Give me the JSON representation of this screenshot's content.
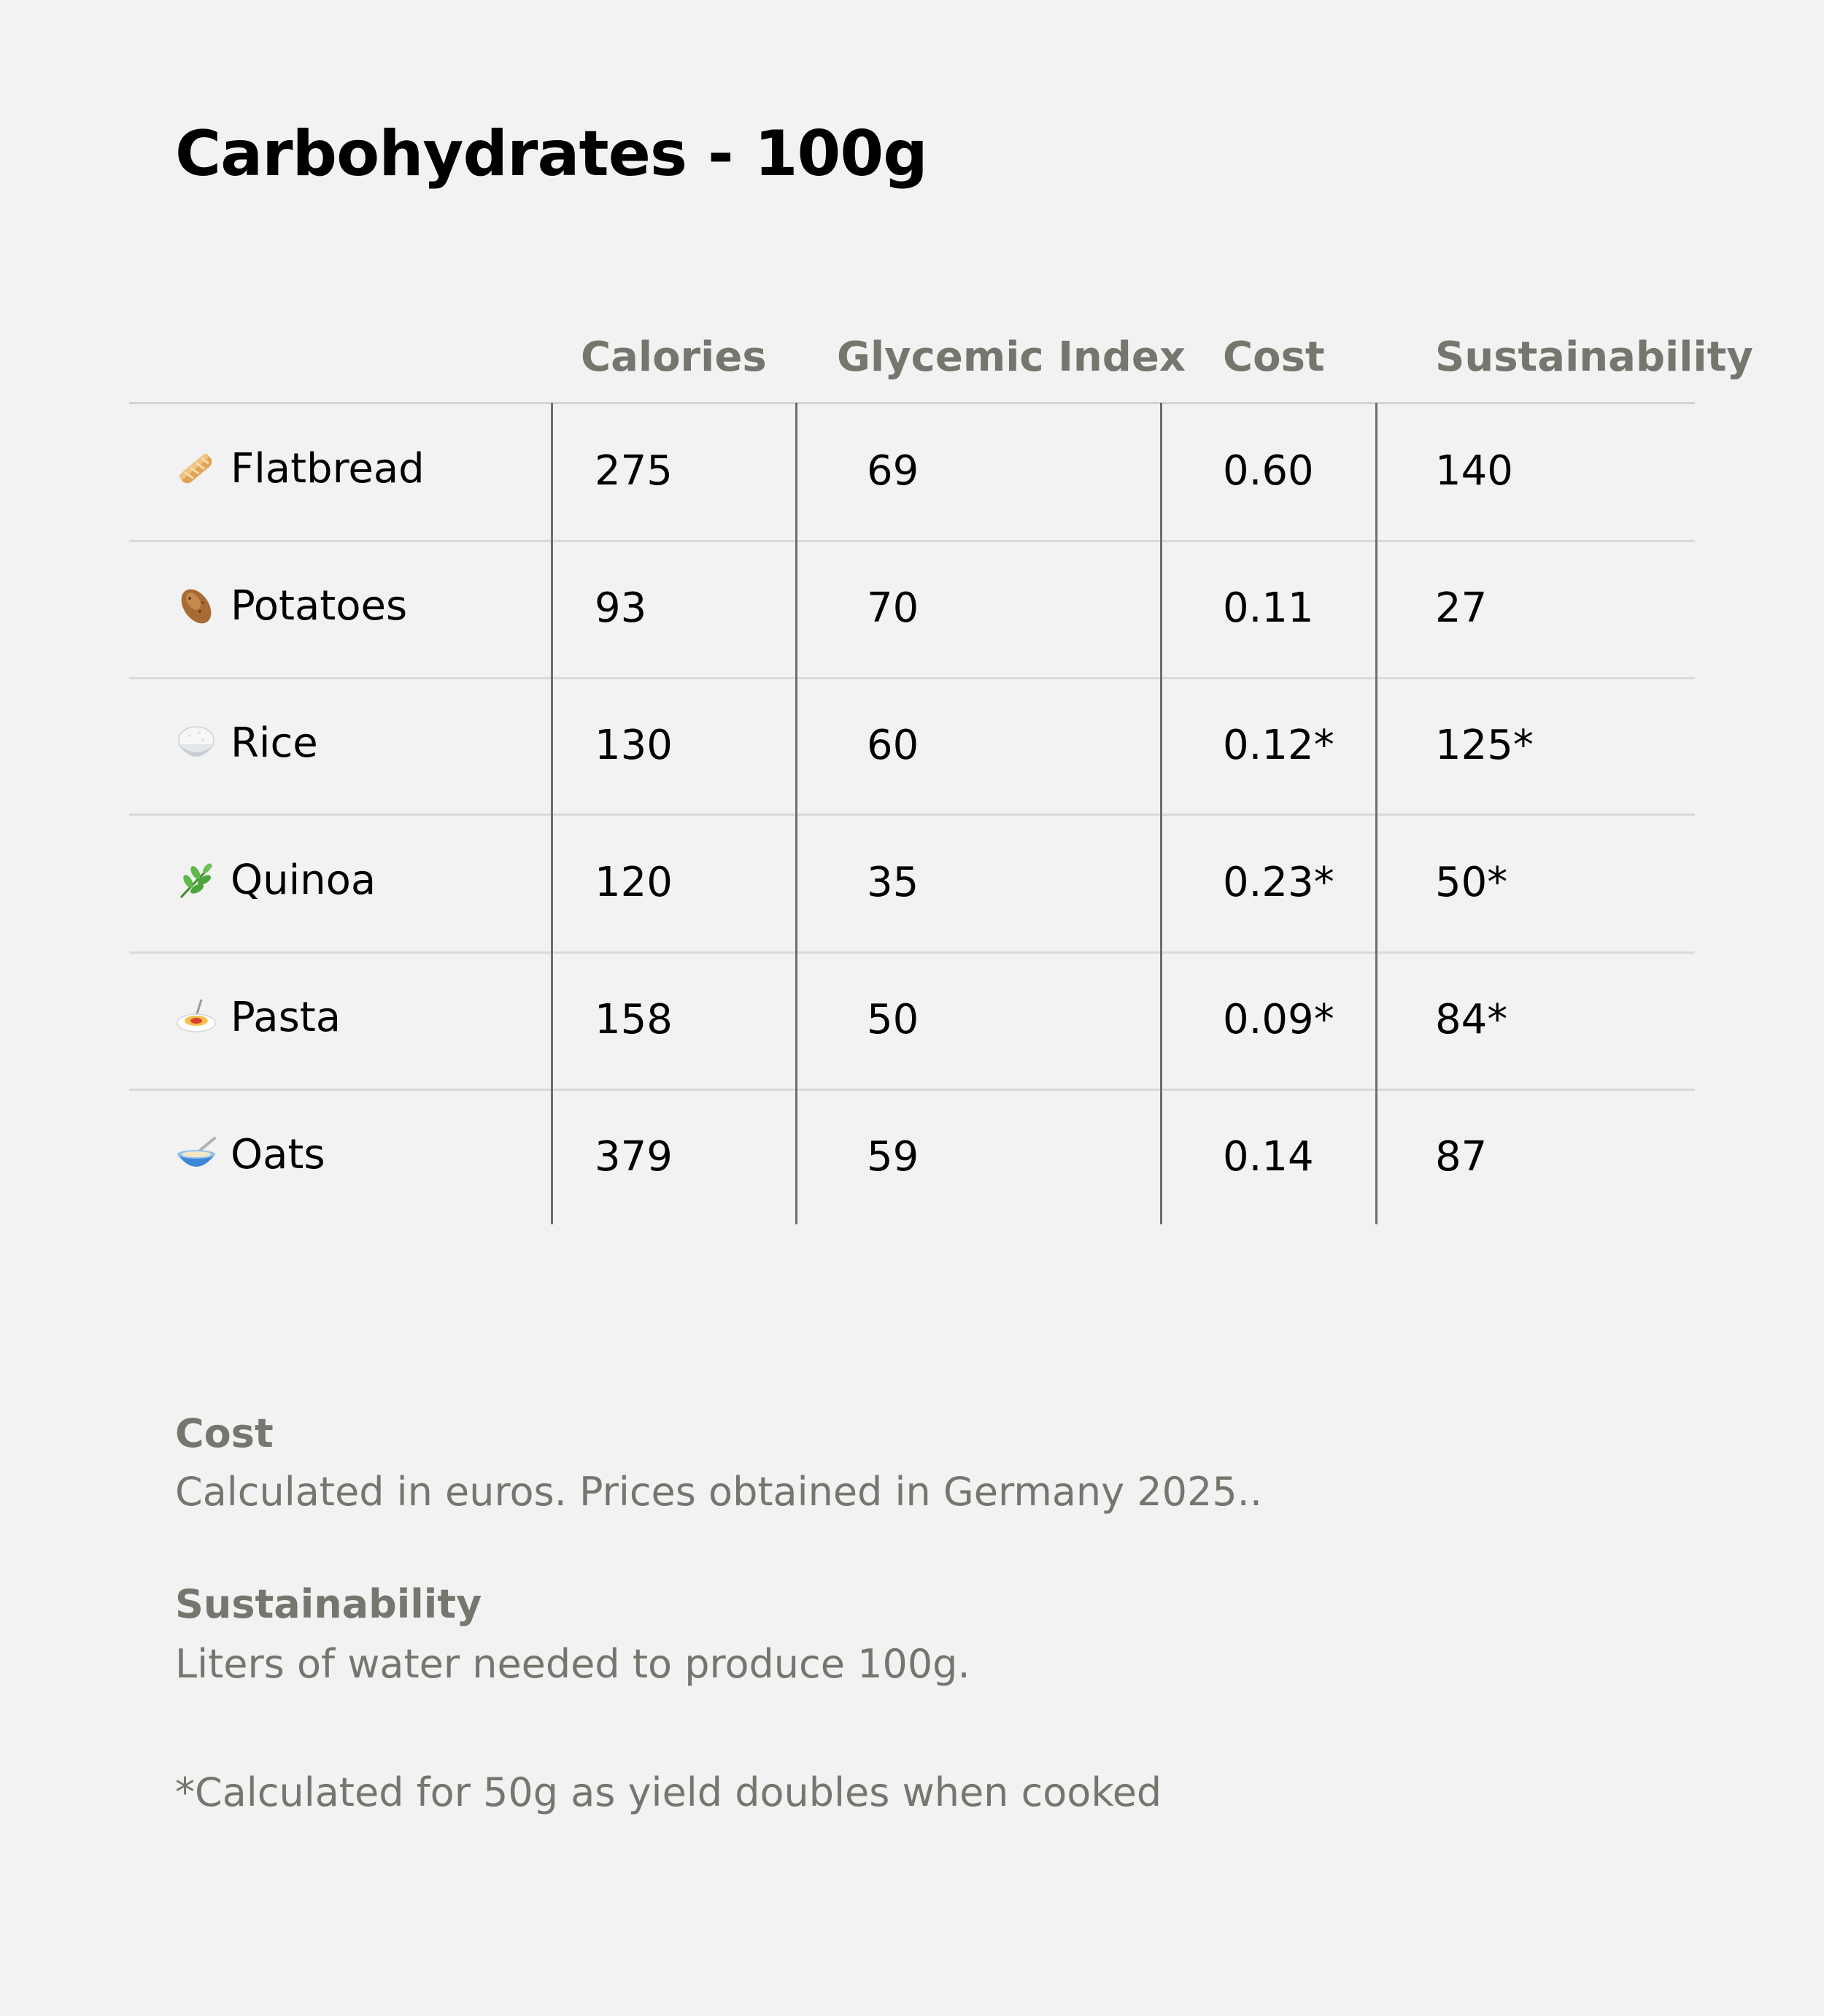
{
  "title": "Carbohydrates - 100g",
  "columns": [
    "Calories",
    "Glycemic Index",
    "Cost",
    "Sustainability"
  ],
  "rows": [
    {
      "name": "Flatbread",
      "icon": "baguette-icon",
      "calories": "275",
      "glycemic_index": "69",
      "cost": "0.60",
      "sustainability": "140"
    },
    {
      "name": "Potatoes",
      "icon": "potato-icon",
      "calories": "93",
      "glycemic_index": "70",
      "cost": "0.11",
      "sustainability": "27"
    },
    {
      "name": "Rice",
      "icon": "rice-bowl-icon",
      "calories": "130",
      "glycemic_index": "60",
      "cost": "0.12*",
      "sustainability": "125*"
    },
    {
      "name": "Quinoa",
      "icon": "herb-icon",
      "calories": "120",
      "glycemic_index": "35",
      "cost": "0.23*",
      "sustainability": "50*"
    },
    {
      "name": "Pasta",
      "icon": "spaghetti-icon",
      "calories": "158",
      "glycemic_index": "50",
      "cost": "0.09*",
      "sustainability": "84*"
    },
    {
      "name": "Oats",
      "icon": "bowl-with-spoon-icon",
      "calories": "379",
      "glycemic_index": "59",
      "cost": "0.14",
      "sustainability": "87"
    }
  ],
  "notes": {
    "cost_title": "Cost",
    "cost_text": "Calculated in euros. Prices obtained in Germany 2025..",
    "sustainability_title": "Sustainability",
    "sustainability_text": "Liters of water needed to produce 100g.",
    "footnote": "*Calculated for 50g as yield doubles when cooked"
  }
}
